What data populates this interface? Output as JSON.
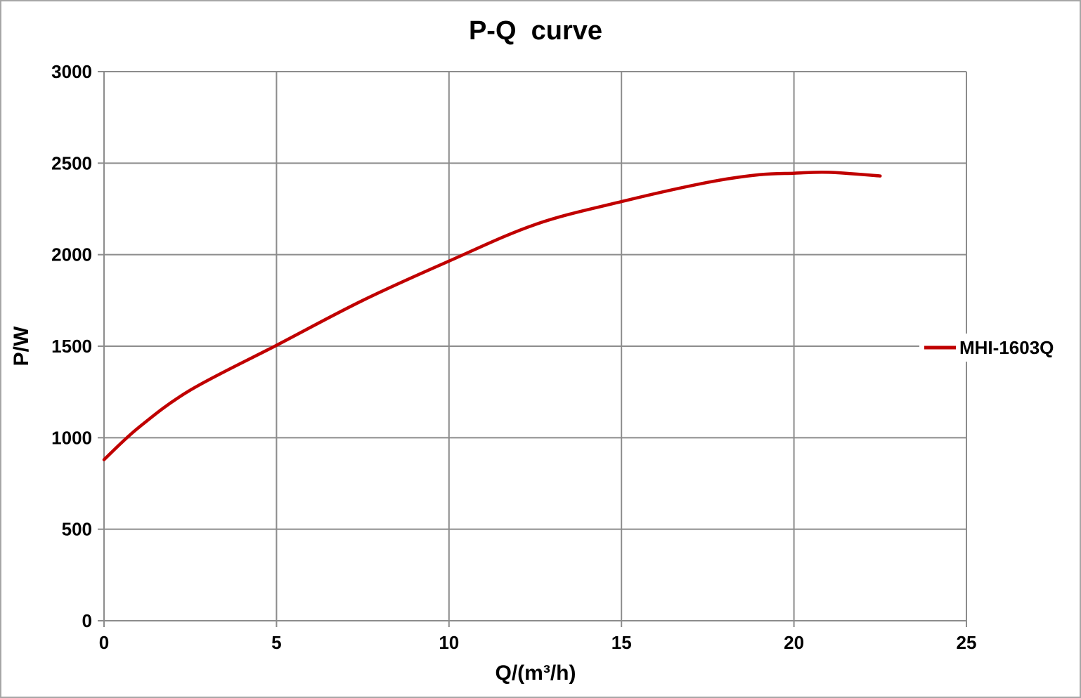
{
  "chart_data": {
    "type": "line",
    "title": "P-Q  curve",
    "xlabel": "Q/(m³/h)",
    "ylabel": "P/W",
    "xlim": [
      0,
      25
    ],
    "ylim": [
      0,
      3000
    ],
    "x_ticks": [
      0,
      5,
      10,
      15,
      20,
      25
    ],
    "y_ticks": [
      0,
      500,
      1000,
      1500,
      2000,
      2500,
      3000
    ],
    "grid": true,
    "legend_position": "right-middle",
    "colors": {
      "grid": "#8c8c8c",
      "text": "#000000",
      "background": "#ffffff",
      "frame": "#a6a6a6"
    },
    "series": [
      {
        "name": "MHI-1603Q",
        "color": "#c00000",
        "line_width": 4.5,
        "x": [
          0,
          1,
          2.5,
          5,
          7.5,
          10,
          12.5,
          15,
          17.5,
          19,
          20,
          21,
          22.5
        ],
        "y": [
          880,
          1055,
          1260,
          1505,
          1750,
          1965,
          2165,
          2290,
          2395,
          2437,
          2445,
          2450,
          2430
        ]
      }
    ]
  }
}
